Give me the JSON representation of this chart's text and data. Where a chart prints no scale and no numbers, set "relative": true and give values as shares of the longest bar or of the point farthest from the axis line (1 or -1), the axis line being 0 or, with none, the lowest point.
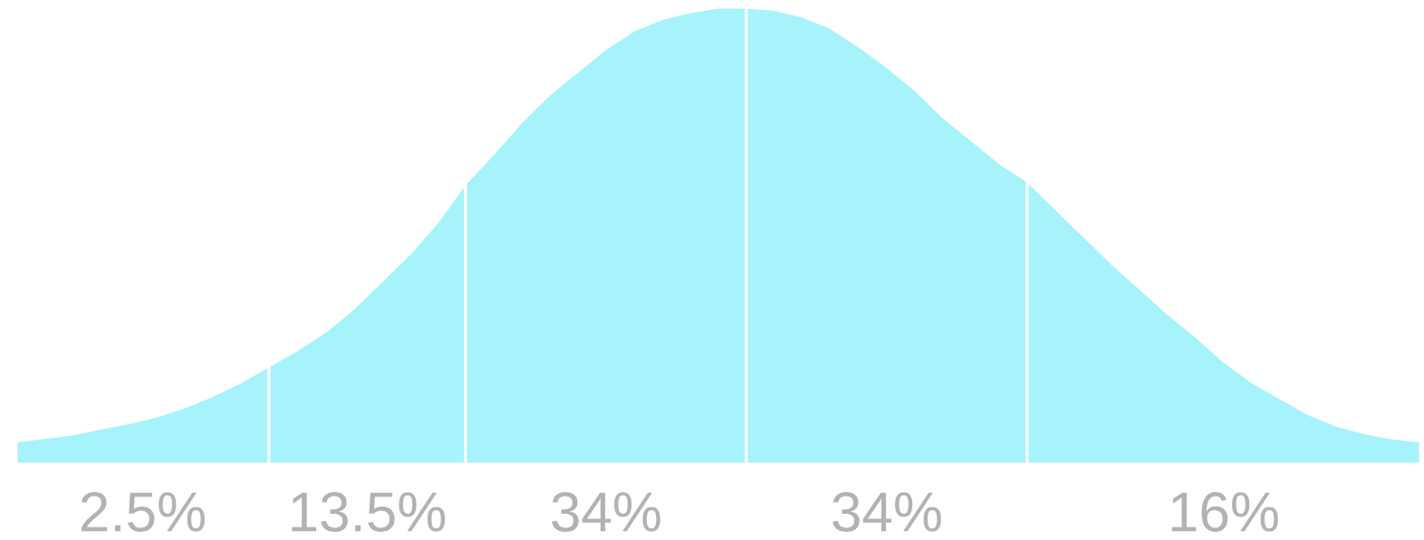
{
  "chart_data": {
    "type": "area",
    "relative": true,
    "categories": [
      null,
      null,
      null,
      null,
      null,
      null,
      null,
      null,
      null,
      null,
      null,
      null,
      null,
      null,
      null,
      null,
      null,
      null,
      null,
      null,
      null,
      null,
      null,
      null,
      null,
      null,
      null,
      null,
      null,
      null,
      null,
      null,
      null,
      null,
      null,
      null,
      null,
      null,
      null,
      null,
      null,
      null,
      null,
      null,
      null,
      null,
      null,
      null,
      null,
      null,
      null
    ],
    "series": [
      {
        "name": "2.5%",
        "color": "#a6f3fb",
        "values": [
          0.05,
          0.058,
          0.066,
          0.078,
          0.09,
          0.105,
          0.125,
          0.15,
          0.18,
          0.215,
          null,
          null,
          null,
          null,
          null,
          null,
          null,
          null,
          null,
          null,
          null,
          null,
          null,
          null,
          null,
          null,
          null,
          null,
          null,
          null,
          null,
          null,
          null,
          null,
          null,
          null,
          null,
          null,
          null,
          null,
          null,
          null,
          null,
          null,
          null,
          null,
          null,
          null,
          null,
          null,
          null
        ]
      },
      {
        "name": "13.5%",
        "color": "#a6f3fb",
        "values": [
          null,
          null,
          null,
          null,
          null,
          null,
          null,
          null,
          null,
          0.215,
          0.25,
          0.29,
          0.34,
          0.4,
          0.46,
          0.53,
          0.615,
          null,
          null,
          null,
          null,
          null,
          null,
          null,
          null,
          null,
          null,
          null,
          null,
          null,
          null,
          null,
          null,
          null,
          null,
          null,
          null,
          null,
          null,
          null,
          null,
          null,
          null,
          null,
          null,
          null,
          null,
          null,
          null,
          null,
          null
        ]
      },
      {
        "name": "34%",
        "color": "#a6f3fb",
        "values": [
          null,
          null,
          null,
          null,
          null,
          null,
          null,
          null,
          null,
          null,
          null,
          null,
          null,
          null,
          null,
          null,
          0.615,
          0.68,
          0.75,
          0.81,
          0.86,
          0.91,
          0.95,
          0.975,
          0.99,
          1.0,
          1.0,
          null,
          null,
          null,
          null,
          null,
          null,
          null,
          null,
          null,
          null,
          null,
          null,
          null,
          null,
          null,
          null,
          null,
          null,
          null,
          null,
          null,
          null,
          null,
          null
        ]
      },
      {
        "name": "34%",
        "color": "#a6f3fb",
        "values": [
          null,
          null,
          null,
          null,
          null,
          null,
          null,
          null,
          null,
          null,
          null,
          null,
          null,
          null,
          null,
          null,
          null,
          null,
          null,
          null,
          null,
          null,
          null,
          null,
          null,
          null,
          1.0,
          0.995,
          0.98,
          0.955,
          0.915,
          0.87,
          0.82,
          0.76,
          0.71,
          0.66,
          0.62,
          null,
          null,
          null,
          null,
          null,
          null,
          null,
          null,
          null,
          null,
          null,
          null,
          null,
          null
        ]
      },
      {
        "name": "16%",
        "color": "#a6f3fb",
        "values": [
          null,
          null,
          null,
          null,
          null,
          null,
          null,
          null,
          null,
          null,
          null,
          null,
          null,
          null,
          null,
          null,
          null,
          null,
          null,
          null,
          null,
          null,
          null,
          null,
          null,
          null,
          null,
          null,
          null,
          null,
          null,
          null,
          null,
          null,
          null,
          null,
          0.62,
          0.56,
          0.5,
          0.44,
          0.385,
          0.33,
          0.28,
          0.225,
          0.18,
          0.145,
          0.11,
          0.085,
          0.068,
          0.057,
          0.05
        ]
      }
    ]
  }
}
